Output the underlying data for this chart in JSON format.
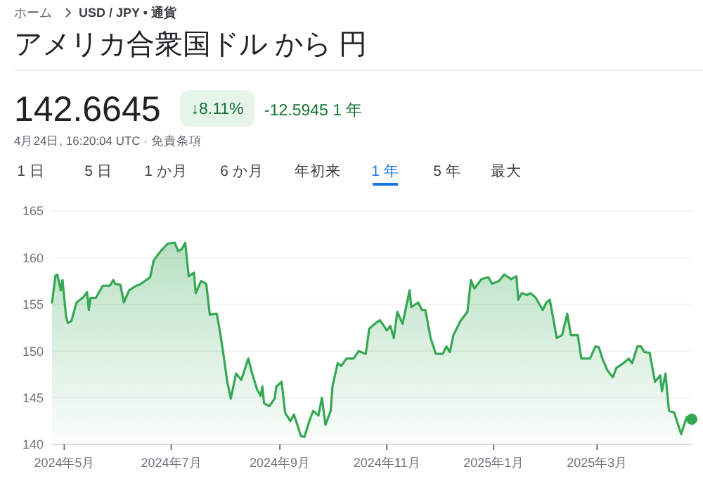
{
  "chart_data": {
    "type": "area",
    "title": "アメリカ合衆国ドル から 円",
    "annotations": [
      "ホーム",
      "USD / JPY • 通貨",
      "142.6645",
      "↓8.11%",
      "-12.5945 1 年",
      "4月24日, 16:20:04 UTC · 免責条項",
      "1 日",
      "5 日",
      "1 か月",
      "6 か月",
      "年初来",
      "1 年",
      "5 年",
      "最大"
    ],
    "xlim": [
      "2024-04-24",
      "2025-04-24"
    ],
    "xticks": [
      {
        "value": "2024-05-01",
        "label": "2024年5月"
      },
      {
        "value": "2024-07-01",
        "label": "2024年7月"
      },
      {
        "value": "2024-09-01",
        "label": "2024年9月"
      },
      {
        "value": "2024-11-01",
        "label": "2024年11月"
      },
      {
        "value": "2025-01-01",
        "label": "2025年1月"
      },
      {
        "value": "2025-03-01",
        "label": "2025年3月"
      }
    ],
    "ylim": [
      140,
      165
    ],
    "yticks": [
      140,
      145,
      150,
      155,
      160,
      165
    ],
    "grid": "y",
    "x": [
      "2024-04-24",
      "2024-04-26",
      "2024-04-27",
      "2024-04-29",
      "2024-04-30",
      "2024-05-02",
      "2024-05-03",
      "2024-05-05",
      "2024-05-08",
      "2024-05-12",
      "2024-05-14",
      "2024-05-15",
      "2024-05-16",
      "2024-05-19",
      "2024-05-23",
      "2024-05-27",
      "2024-05-29",
      "2024-05-30",
      "2024-06-02",
      "2024-06-04",
      "2024-06-07",
      "2024-06-11",
      "2024-06-13",
      "2024-06-19",
      "2024-06-21",
      "2024-06-25",
      "2024-06-29",
      "2024-07-03",
      "2024-07-05",
      "2024-07-07",
      "2024-07-09",
      "2024-07-11",
      "2024-07-14",
      "2024-07-15",
      "2024-07-18",
      "2024-07-21",
      "2024-07-23",
      "2024-07-27",
      "2024-07-29",
      "2024-07-31",
      "2024-08-02",
      "2024-08-04",
      "2024-08-07",
      "2024-08-10",
      "2024-08-14",
      "2024-08-16",
      "2024-08-19",
      "2024-08-21",
      "2024-08-22",
      "2024-08-23",
      "2024-08-26",
      "2024-08-29",
      "2024-08-30",
      "2024-09-02",
      "2024-09-04",
      "2024-09-07",
      "2024-09-09",
      "2024-09-11",
      "2024-09-13",
      "2024-09-15",
      "2024-09-18",
      "2024-09-20",
      "2024-09-23",
      "2024-09-25",
      "2024-09-27",
      "2024-09-30",
      "2024-10-01",
      "2024-10-04",
      "2024-10-06",
      "2024-10-09",
      "2024-10-13",
      "2024-10-16",
      "2024-10-20",
      "2024-10-22",
      "2024-10-25",
      "2024-10-28",
      "2024-10-30",
      "2024-11-01",
      "2024-11-03",
      "2024-11-05",
      "2024-11-07",
      "2024-11-10",
      "2024-11-14",
      "2024-11-15",
      "2024-11-19",
      "2024-11-21",
      "2024-11-23",
      "2024-11-26",
      "2024-11-29",
      "2024-12-03",
      "2024-12-05",
      "2024-12-07",
      "2024-12-09",
      "2024-12-13",
      "2024-12-15",
      "2024-12-17",
      "2024-12-19",
      "2024-12-21",
      "2024-12-25",
      "2024-12-29",
      "2024-12-31",
      "2025-01-04",
      "2025-01-07",
      "2025-01-11",
      "2025-01-14",
      "2025-01-15",
      "2025-01-17",
      "2025-01-20",
      "2025-01-22",
      "2025-01-25",
      "2025-01-29",
      "2025-01-31",
      "2025-02-02",
      "2025-02-06",
      "2025-02-09",
      "2025-02-12",
      "2025-02-14",
      "2025-02-18",
      "2025-02-20",
      "2025-02-25",
      "2025-02-28",
      "2025-03-02",
      "2025-03-04",
      "2025-03-07",
      "2025-03-10",
      "2025-03-12",
      "2025-03-16",
      "2025-03-19",
      "2025-03-21",
      "2025-03-24",
      "2025-03-26",
      "2025-03-28",
      "2025-03-31",
      "2025-04-03",
      "2025-04-06",
      "2025-04-07",
      "2025-04-09",
      "2025-04-11",
      "2025-04-14",
      "2025-04-18",
      "2025-04-21",
      "2025-04-24"
    ],
    "series": [
      {
        "color": "#34a853",
        "values": [
          155.2,
          158.1,
          158.2,
          156.5,
          157.6,
          153.7,
          153.0,
          153.2,
          155.2,
          155.8,
          156.3,
          154.4,
          155.7,
          155.7,
          157.0,
          157.0,
          157.6,
          157.2,
          157.1,
          155.2,
          156.5,
          157.0,
          157.1,
          157.9,
          159.7,
          160.7,
          161.5,
          161.6,
          160.7,
          160.9,
          161.6,
          158.0,
          158.4,
          156.2,
          157.5,
          157.2,
          153.9,
          154.0,
          151.9,
          149.4,
          146.7,
          144.9,
          147.6,
          146.9,
          149.2,
          147.7,
          145.9,
          145.2,
          146.2,
          144.4,
          144.1,
          144.9,
          146.2,
          146.7,
          143.4,
          142.5,
          143.2,
          142.1,
          140.9,
          140.8,
          142.6,
          143.6,
          143.1,
          145.0,
          142.1,
          143.6,
          146.2,
          148.7,
          148.4,
          149.2,
          149.2,
          150.0,
          149.7,
          152.4,
          152.9,
          153.3,
          152.8,
          152.2,
          152.7,
          151.4,
          154.2,
          152.9,
          156.5,
          154.7,
          155.2,
          154.4,
          154.4,
          151.4,
          149.7,
          149.7,
          150.5,
          149.9,
          151.7,
          153.2,
          153.7,
          154.2,
          157.6,
          156.7,
          157.7,
          157.9,
          157.2,
          157.5,
          158.2,
          157.7,
          158.0,
          155.5,
          156.2,
          156.0,
          156.2,
          155.7,
          154.4,
          155.2,
          155.5,
          151.4,
          151.7,
          154.0,
          151.7,
          151.7,
          149.2,
          149.2,
          150.5,
          150.4,
          149.2,
          147.9,
          147.2,
          148.2,
          148.7,
          149.2,
          148.7,
          150.5,
          150.5,
          149.9,
          149.8,
          146.7,
          147.4,
          145.7,
          147.6,
          143.6,
          143.4,
          141.1,
          142.9,
          142.7
        ]
      }
    ]
  }
}
